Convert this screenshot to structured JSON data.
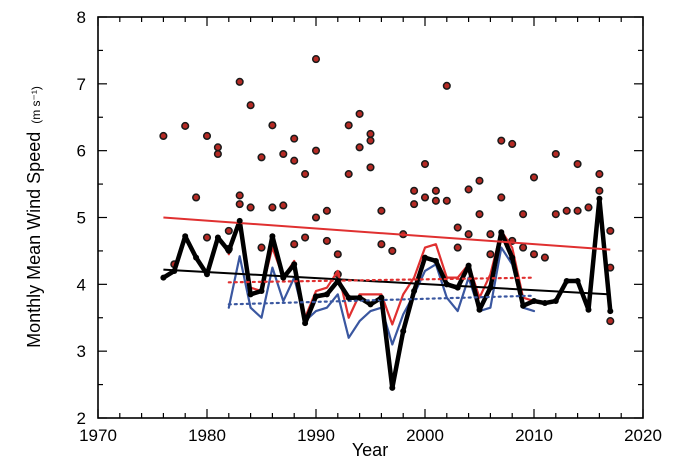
{
  "chart_data": {
    "type": "line",
    "xlabel": "Year",
    "ylabel": "Monthly Mean Wind Speed",
    "yunit": "(m s⁻¹)",
    "xlim": [
      1970,
      2020
    ],
    "ylim": [
      2,
      8
    ],
    "xticks": [
      1970,
      1980,
      1990,
      2000,
      2010,
      2020
    ],
    "yticks": [
      2,
      3,
      4,
      5,
      6,
      7,
      8
    ],
    "grid": false,
    "legend": "none",
    "scatter_points": [
      [
        1976,
        6.22
      ],
      [
        1977,
        4.3
      ],
      [
        1978,
        6.37
      ],
      [
        1979,
        5.3
      ],
      [
        1980,
        6.22
      ],
      [
        1980,
        4.7
      ],
      [
        1981,
        6.05
      ],
      [
        1981,
        5.95
      ],
      [
        1982,
        4.8
      ],
      [
        1982,
        4.53
      ],
      [
        1983,
        7.03
      ],
      [
        1983,
        5.33
      ],
      [
        1983,
        5.2
      ],
      [
        1984,
        6.68
      ],
      [
        1984,
        5.15
      ],
      [
        1985,
        5.9
      ],
      [
        1985,
        4.55
      ],
      [
        1986,
        6.38
      ],
      [
        1986,
        5.15
      ],
      [
        1987,
        5.95
      ],
      [
        1987,
        5.18
      ],
      [
        1988,
        6.18
      ],
      [
        1988,
        5.85
      ],
      [
        1988,
        4.6
      ],
      [
        1989,
        5.65
      ],
      [
        1989,
        4.7
      ],
      [
        1990,
        7.37
      ],
      [
        1990,
        6.0
      ],
      [
        1990,
        5.0
      ],
      [
        1991,
        5.1
      ],
      [
        1991,
        4.65
      ],
      [
        1992,
        4.45
      ],
      [
        1992,
        4.15
      ],
      [
        1993,
        6.38
      ],
      [
        1993,
        5.65
      ],
      [
        1994,
        6.55
      ],
      [
        1994,
        6.05
      ],
      [
        1995,
        6.25
      ],
      [
        1995,
        6.15
      ],
      [
        1995,
        5.75
      ],
      [
        1996,
        5.1
      ],
      [
        1996,
        4.6
      ],
      [
        1997,
        4.5
      ],
      [
        1998,
        4.75
      ],
      [
        1999,
        5.4
      ],
      [
        1999,
        5.2
      ],
      [
        2000,
        5.8
      ],
      [
        2000,
        5.3
      ],
      [
        2001,
        5.4
      ],
      [
        2001,
        5.25
      ],
      [
        2002,
        6.97
      ],
      [
        2002,
        5.25
      ],
      [
        2003,
        4.85
      ],
      [
        2003,
        4.55
      ],
      [
        2004,
        5.42
      ],
      [
        2004,
        4.75
      ],
      [
        2005,
        5.55
      ],
      [
        2005,
        5.05
      ],
      [
        2006,
        4.75
      ],
      [
        2006,
        4.45
      ],
      [
        2007,
        6.15
      ],
      [
        2007,
        5.3
      ],
      [
        2008,
        6.1
      ],
      [
        2008,
        4.65
      ],
      [
        2009,
        5.05
      ],
      [
        2009,
        4.55
      ],
      [
        2010,
        5.6
      ],
      [
        2010,
        4.45
      ],
      [
        2011,
        4.4
      ],
      [
        2012,
        5.95
      ],
      [
        2012,
        5.05
      ],
      [
        2013,
        5.1
      ],
      [
        2014,
        5.8
      ],
      [
        2014,
        5.1
      ],
      [
        2015,
        5.15
      ],
      [
        2016,
        5.65
      ],
      [
        2016,
        5.4
      ],
      [
        2017,
        4.8
      ],
      [
        2017,
        4.25
      ],
      [
        2017,
        3.45
      ]
    ],
    "series": [
      {
        "color": "#000000",
        "x": [
          1976,
          1977,
          1978,
          1979,
          1980,
          1981,
          1982,
          1983,
          1984,
          1985,
          1986,
          1987,
          1988,
          1989,
          1990,
          1991,
          1992,
          1993,
          1994,
          1995,
          1996,
          1997,
          1998,
          1999,
          2000,
          2001,
          2002,
          2003,
          2004,
          2005,
          2006,
          2007,
          2008,
          2009,
          2010,
          2011,
          2012,
          2013,
          2014,
          2015,
          2016,
          2017
        ],
        "y": [
          4.1,
          4.2,
          4.72,
          4.4,
          4.15,
          4.7,
          4.5,
          4.95,
          3.85,
          3.9,
          4.72,
          4.1,
          4.3,
          3.42,
          3.82,
          3.85,
          4.05,
          3.8,
          3.8,
          3.7,
          3.8,
          2.45,
          3.3,
          3.9,
          4.4,
          4.35,
          4.0,
          3.95,
          4.28,
          3.62,
          3.95,
          4.78,
          4.4,
          3.68,
          3.75,
          3.72,
          3.75,
          4.05,
          4.05,
          3.62,
          5.28,
          3.6
        ]
      },
      {
        "color": "#e03030",
        "x": [
          1982,
          1983,
          1984,
          1985,
          1986,
          1987,
          1988,
          1989,
          1990,
          1991,
          1992,
          1993,
          1994,
          1995,
          1996,
          1997,
          1998,
          1999,
          2000,
          2001,
          2002,
          2003,
          2004,
          2005,
          2006,
          2007,
          2008,
          2009,
          2010
        ],
        "y": [
          4.45,
          4.95,
          3.95,
          3.9,
          4.55,
          4.1,
          4.35,
          3.5,
          3.9,
          3.95,
          4.2,
          3.5,
          3.85,
          3.85,
          3.85,
          3.4,
          3.85,
          4.1,
          4.55,
          4.6,
          4.1,
          4.1,
          4.3,
          3.8,
          4.15,
          4.8,
          4.55,
          3.8,
          3.75
        ]
      },
      {
        "color": "#3a57a0",
        "x": [
          1982,
          1983,
          1984,
          1985,
          1986,
          1987,
          1988,
          1989,
          1990,
          1991,
          1992,
          1993,
          1994,
          1995,
          1996,
          1997,
          1998,
          1999,
          2000,
          2001,
          2002,
          2003,
          2004,
          2005,
          2006,
          2007,
          2008,
          2009,
          2010
        ],
        "y": [
          3.65,
          4.42,
          3.65,
          3.5,
          4.25,
          3.75,
          4.1,
          3.45,
          3.6,
          3.65,
          3.85,
          3.2,
          3.45,
          3.6,
          3.65,
          3.1,
          3.55,
          3.85,
          4.2,
          4.3,
          3.8,
          3.6,
          4.1,
          3.6,
          3.65,
          4.55,
          4.3,
          3.65,
          3.6
        ]
      }
    ],
    "trend_lines": [
      {
        "color": "#e03030",
        "style": "solid",
        "x": [
          1976,
          2017
        ],
        "y": [
          5.0,
          4.52
        ]
      },
      {
        "color": "#000000",
        "style": "solid",
        "x": [
          1976,
          2017
        ],
        "y": [
          4.22,
          3.85
        ]
      },
      {
        "color": "#e03030",
        "style": "dotted",
        "x": [
          1982,
          2010
        ],
        "y": [
          4.03,
          4.1
        ]
      },
      {
        "color": "#3a57a0",
        "style": "dotted",
        "x": [
          1982,
          2010
        ],
        "y": [
          3.7,
          3.83
        ]
      }
    ]
  }
}
